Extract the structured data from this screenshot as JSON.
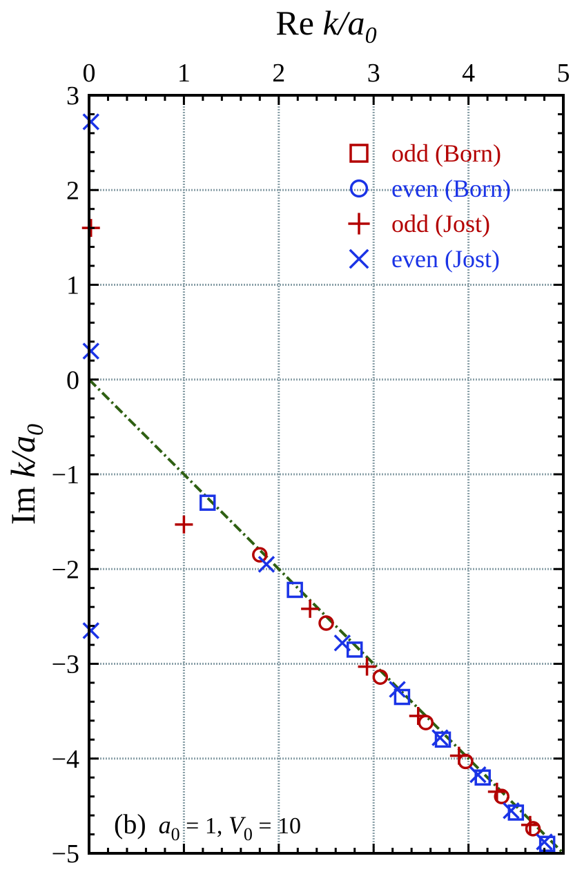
{
  "chart_data": {
    "type": "scatter",
    "title": "",
    "xlabel": {
      "main": "Re ",
      "italic": "k/a",
      "sub": "0"
    },
    "ylabel": {
      "main": "Im ",
      "italic": "k/a",
      "sub": "0"
    },
    "xaxis_position": "top",
    "xlim": [
      0,
      5
    ],
    "ylim": [
      -5,
      3
    ],
    "xticks": [
      0,
      1,
      2,
      3,
      4,
      5
    ],
    "yticks": [
      3,
      2,
      1,
      0,
      -1,
      -2,
      -3,
      -4,
      -5
    ],
    "xtick_labels": [
      "0",
      "1",
      "2",
      "3",
      "4",
      "5"
    ],
    "ytick_labels": [
      "3",
      "2",
      "1",
      "0",
      "−1",
      "−2",
      "−3",
      "−4",
      "−5"
    ],
    "grid": true,
    "legend_position": "top-right",
    "colors": {
      "odd": "#b30000",
      "even": "#1a33e6",
      "line": "#2e5f12",
      "grid": "#8aa0a8"
    },
    "line": {
      "name": "",
      "style": "dash-dot",
      "x": [
        0,
        5
      ],
      "y": [
        0,
        -5
      ]
    },
    "series": [
      {
        "name": "odd (Born)",
        "marker": "square",
        "color": "#b30000",
        "stroke": "#1a33e6",
        "points": [
          [
            1.25,
            -1.3
          ],
          [
            2.17,
            -2.22
          ],
          [
            2.8,
            -2.85
          ],
          [
            3.3,
            -3.35
          ],
          [
            3.73,
            -3.8
          ],
          [
            4.15,
            -4.2
          ],
          [
            4.5,
            -4.57
          ],
          [
            4.83,
            -4.9
          ]
        ]
      },
      {
        "name": "even (Born)",
        "marker": "circle",
        "color": "#1a33e6",
        "stroke": "#b30000",
        "points": [
          [
            1.8,
            -1.85
          ],
          [
            2.5,
            -2.57
          ],
          [
            3.07,
            -3.14
          ],
          [
            3.55,
            -3.62
          ],
          [
            3.97,
            -4.03
          ],
          [
            4.35,
            -4.4
          ],
          [
            4.68,
            -4.74
          ]
        ]
      },
      {
        "name": "odd (Jost)",
        "marker": "plus",
        "color": "#b30000",
        "points": [
          [
            0.02,
            1.6
          ],
          [
            1.0,
            -1.53
          ],
          [
            2.33,
            -2.42
          ],
          [
            2.93,
            -3.03
          ],
          [
            3.47,
            -3.55
          ],
          [
            3.9,
            -3.97
          ],
          [
            4.3,
            -4.35
          ],
          [
            4.65,
            -4.7
          ]
        ]
      },
      {
        "name": "even (Jost)",
        "marker": "cross",
        "color": "#1a33e6",
        "points": [
          [
            0.02,
            2.72
          ],
          [
            0.02,
            0.3
          ],
          [
            0.02,
            -2.65
          ],
          [
            1.87,
            -1.95
          ],
          [
            2.67,
            -2.78
          ],
          [
            3.25,
            -3.27
          ],
          [
            3.7,
            -3.78
          ],
          [
            4.1,
            -4.17
          ],
          [
            4.45,
            -4.55
          ],
          [
            4.8,
            -4.88
          ]
        ]
      }
    ],
    "annotation": {
      "panel": "(b)",
      "a_sym": "a",
      "a_sub": "0",
      "a_val": " = 1, ",
      "v_sym": "V",
      "v_sub": "0",
      "v_val": " = 10"
    }
  }
}
